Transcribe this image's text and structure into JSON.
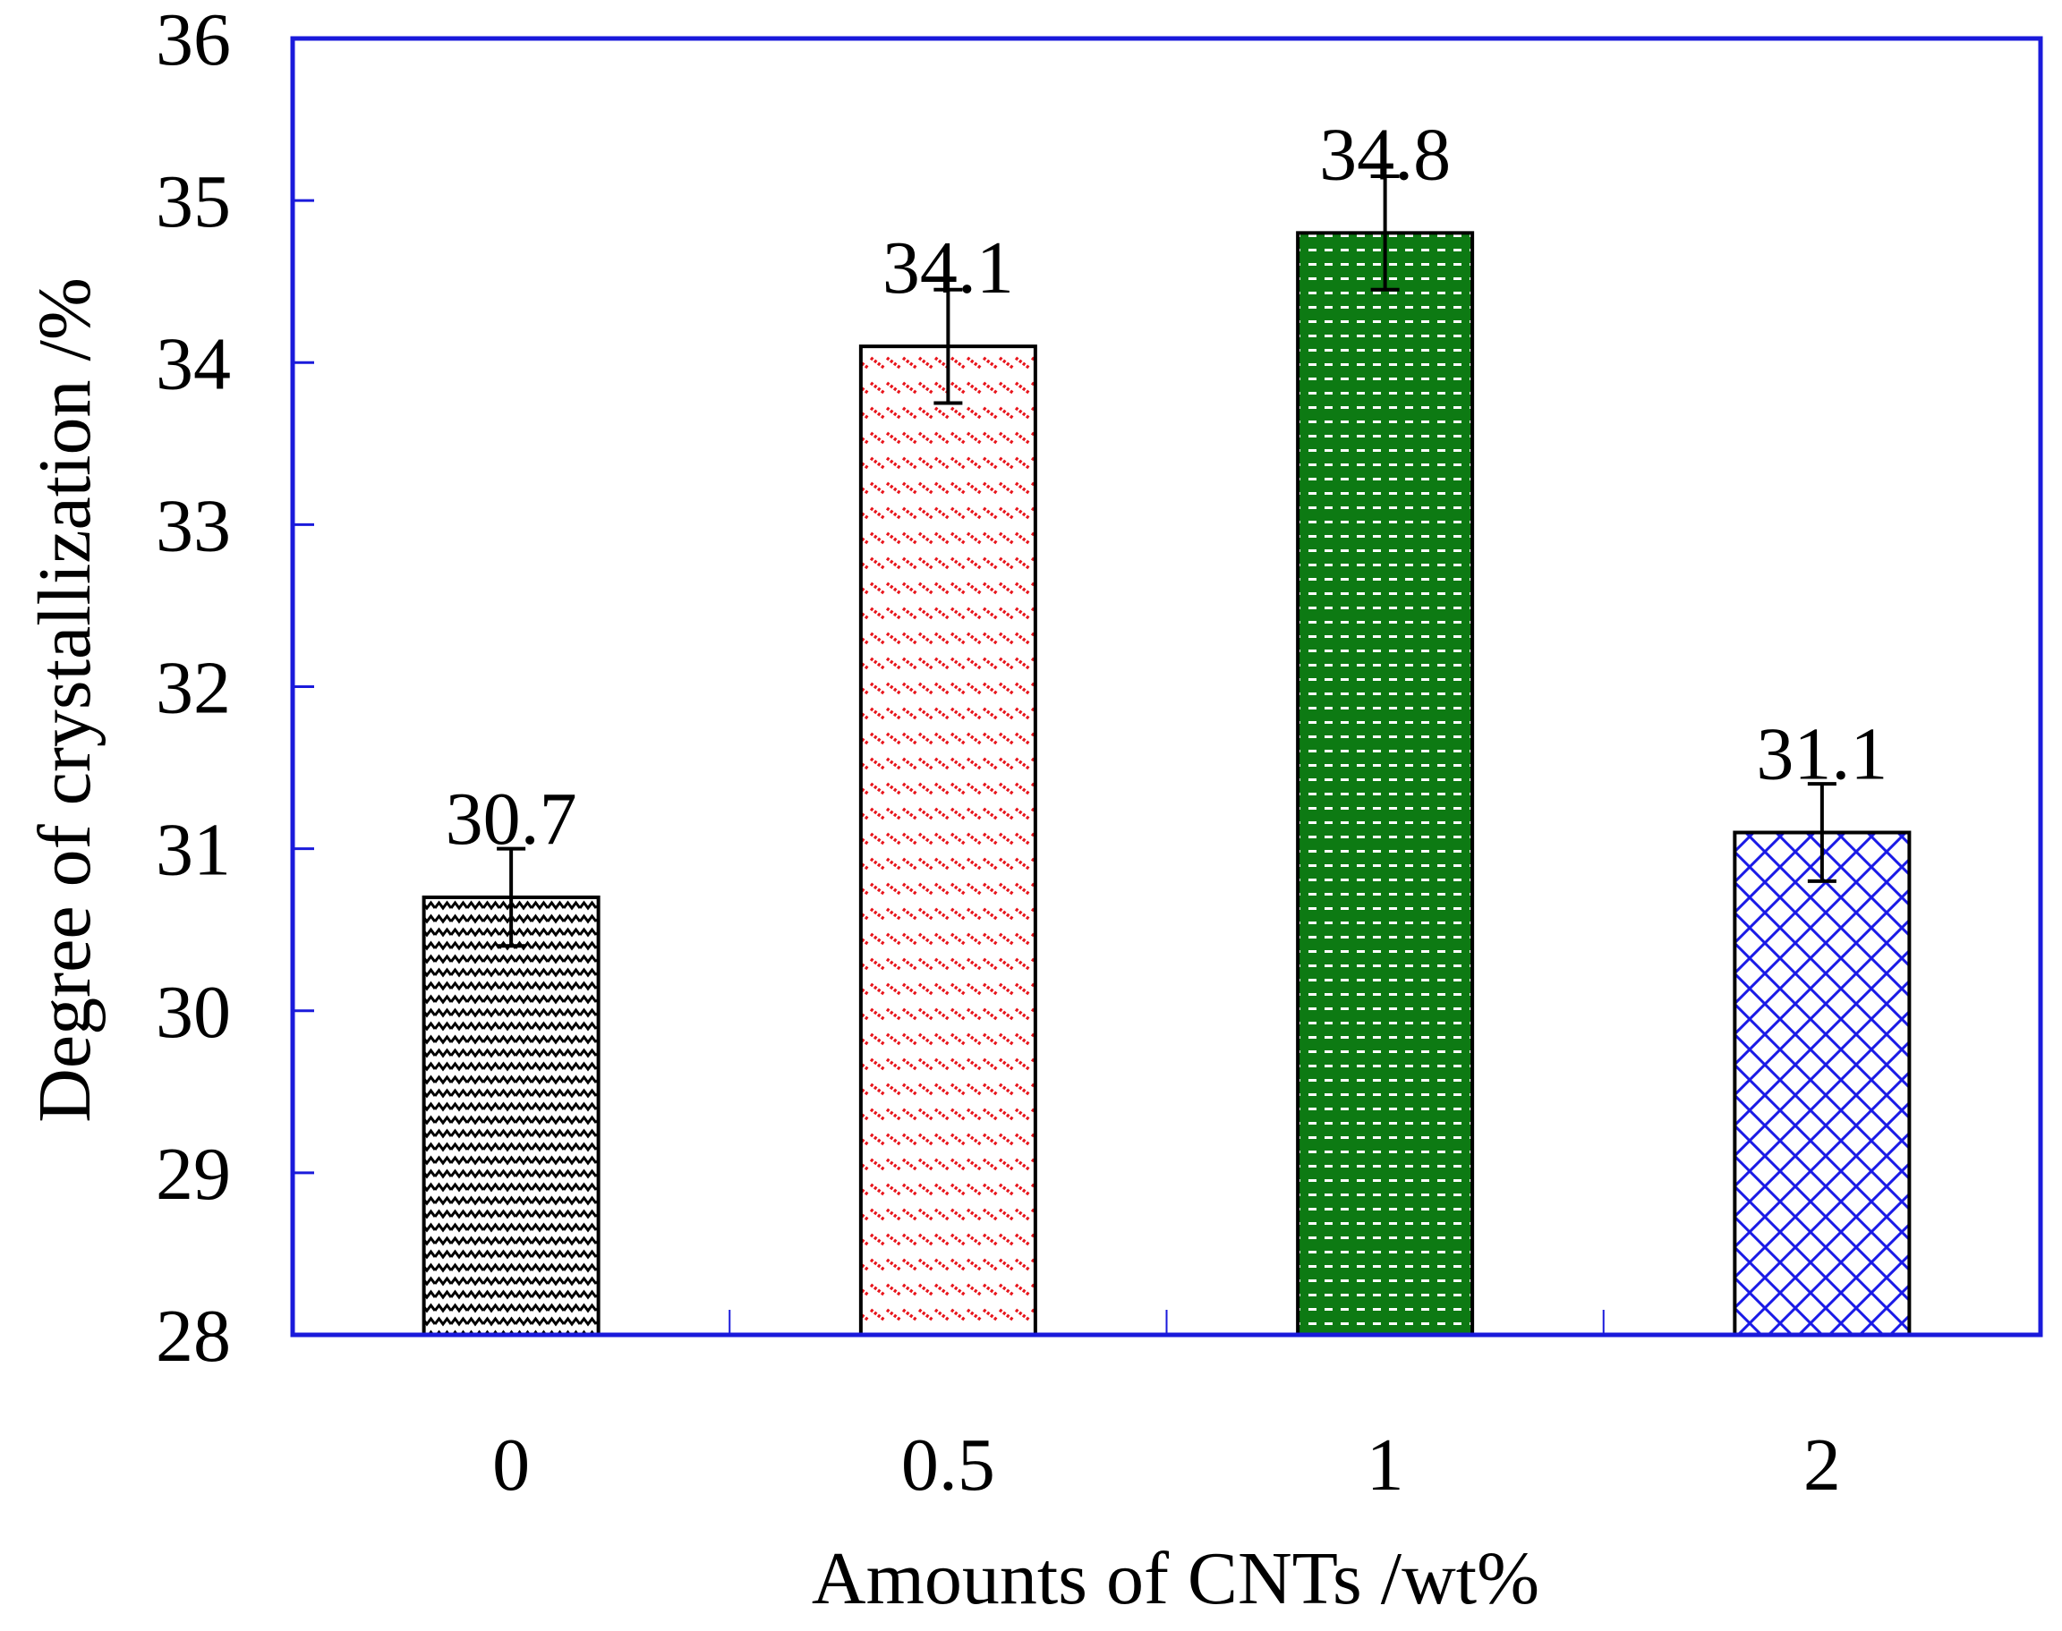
{
  "chart_data": {
    "type": "bar",
    "title": "",
    "xlabel": "Amounts of CNTs /wt%",
    "ylabel": "Degree of crystallization /%",
    "ylim": [
      28,
      36
    ],
    "yticks": [
      "28",
      "29",
      "30",
      "31",
      "32",
      "33",
      "34",
      "35",
      "36"
    ],
    "categories": [
      "0",
      "0.5",
      "1",
      "2"
    ],
    "values": [
      30.7,
      34.1,
      34.8,
      31.1
    ],
    "value_labels": [
      "30.7",
      "34.1",
      "34.8",
      "31.1"
    ],
    "errors": [
      0.3,
      0.35,
      0.35,
      0.3
    ],
    "bar_colors": [
      "#000000",
      "#e8141b",
      "#0d7a13",
      "#1a1ae6"
    ],
    "bar_fill_patterns": [
      "zigzag",
      "dashes",
      "dots",
      "diamond-grid"
    ],
    "axis_color": "#1a1adb",
    "grid": false,
    "legend": "none"
  }
}
